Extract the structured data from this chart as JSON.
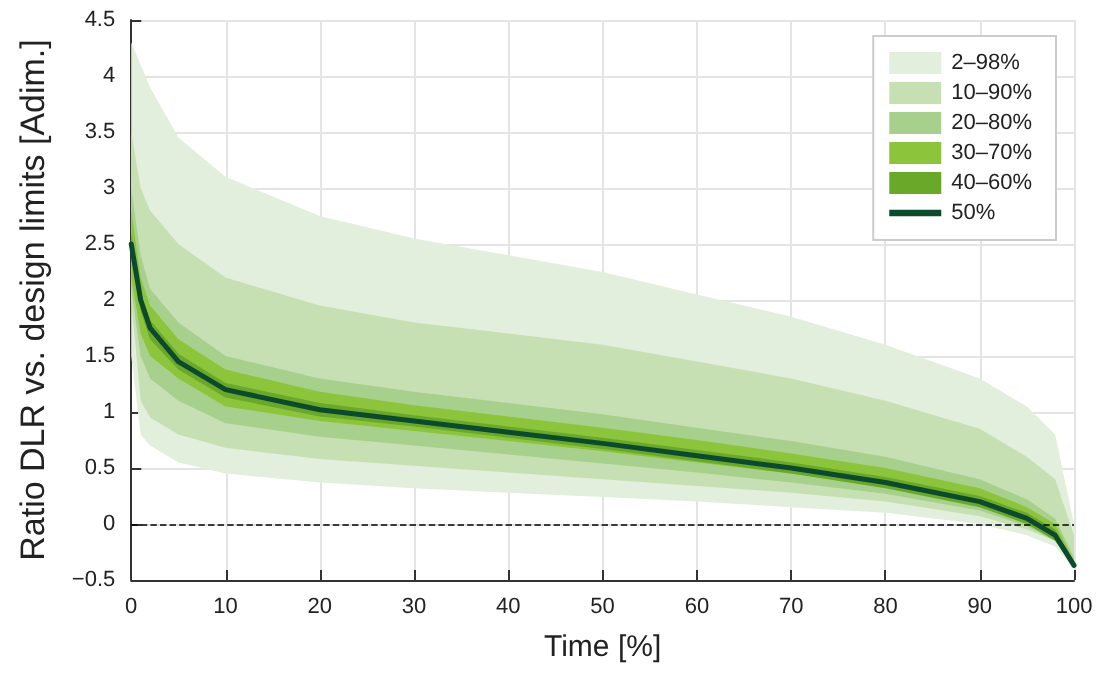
{
  "chart_data": {
    "type": "area",
    "xlabel": "Time [%]",
    "ylabel": "Ratio DLR vs. design limits [Adim.]",
    "x": [
      0,
      1,
      2,
      5,
      10,
      20,
      30,
      40,
      50,
      60,
      70,
      80,
      90,
      95,
      98,
      100
    ],
    "xlim": [
      0,
      100
    ],
    "xticks": [
      0,
      10,
      20,
      30,
      40,
      50,
      60,
      70,
      80,
      90,
      100
    ],
    "ylim": [
      -0.5,
      4.5
    ],
    "yticks": [
      {
        "value": -0.5,
        "label": "−0.5"
      },
      0,
      0.5,
      1,
      1.5,
      2,
      2.5,
      3,
      3.5,
      4,
      4.5
    ],
    "grid": true,
    "legend": "top right",
    "marker": "none",
    "line_style": "solid",
    "ref_lines": [
      {
        "axis": "y",
        "value": 0,
        "color": "#000000",
        "line_style": "dashed"
      }
    ],
    "series": [
      {
        "name": "2–98%",
        "color": "#e2efdd",
        "values": [
          null,
          null,
          null,
          null,
          null,
          null,
          null,
          null,
          null,
          null,
          null,
          null,
          null,
          null,
          null,
          null
        ],
        "lower": [
          1.5,
          0.8,
          0.7,
          0.55,
          0.45,
          0.37,
          0.32,
          0.28,
          0.24,
          0.2,
          0.15,
          0.1,
          0.0,
          -0.1,
          -0.2,
          -0.4
        ],
        "upper": [
          4.3,
          4.1,
          3.9,
          3.45,
          3.1,
          2.75,
          2.55,
          2.4,
          2.25,
          2.05,
          1.85,
          1.6,
          1.3,
          1.05,
          0.8,
          0.0
        ]
      },
      {
        "name": "10–90%",
        "color": "#c6e0b4",
        "values": [
          null,
          null,
          null,
          null,
          null,
          null,
          null,
          null,
          null,
          null,
          null,
          null,
          null,
          null,
          null,
          null
        ],
        "lower": [
          2.0,
          1.1,
          0.95,
          0.8,
          0.68,
          0.58,
          0.52,
          0.46,
          0.4,
          0.34,
          0.28,
          0.2,
          0.07,
          -0.05,
          -0.15,
          -0.38
        ],
        "upper": [
          3.5,
          3.0,
          2.8,
          2.5,
          2.2,
          1.95,
          1.8,
          1.7,
          1.6,
          1.45,
          1.3,
          1.1,
          0.85,
          0.6,
          0.4,
          -0.1
        ]
      },
      {
        "name": "20–80%",
        "color": "#a8d08d",
        "values": [
          null,
          null,
          null,
          null,
          null,
          null,
          null,
          null,
          null,
          null,
          null,
          null,
          null,
          null,
          null,
          null
        ],
        "lower": [
          2.1,
          1.5,
          1.3,
          1.1,
          0.9,
          0.78,
          0.7,
          0.62,
          0.54,
          0.46,
          0.37,
          0.27,
          0.12,
          -0.02,
          -0.15,
          -0.38
        ],
        "upper": [
          3.0,
          2.4,
          2.1,
          1.8,
          1.5,
          1.3,
          1.18,
          1.08,
          0.98,
          0.86,
          0.74,
          0.6,
          0.4,
          0.22,
          0.05,
          -0.3
        ]
      },
      {
        "name": "30–70%",
        "color": "#8cc43c",
        "values": [
          null,
          null,
          null,
          null,
          null,
          null,
          null,
          null,
          null,
          null,
          null,
          null,
          null,
          null,
          null,
          null
        ],
        "lower": [
          2.2,
          1.7,
          1.5,
          1.3,
          1.05,
          0.92,
          0.83,
          0.74,
          0.65,
          0.55,
          0.45,
          0.33,
          0.16,
          0.0,
          -0.14,
          -0.38
        ],
        "upper": [
          2.8,
          2.2,
          1.95,
          1.65,
          1.38,
          1.18,
          1.06,
          0.96,
          0.86,
          0.75,
          0.63,
          0.5,
          0.32,
          0.15,
          0.0,
          -0.33
        ]
      },
      {
        "name": "40–60%",
        "color": "#6aa82a",
        "values": [
          null,
          null,
          null,
          null,
          null,
          null,
          null,
          null,
          null,
          null,
          null,
          null,
          null,
          null,
          null,
          null
        ],
        "lower": [
          2.4,
          1.9,
          1.65,
          1.38,
          1.13,
          0.96,
          0.87,
          0.77,
          0.67,
          0.56,
          0.45,
          0.32,
          0.15,
          0.0,
          -0.15,
          -0.39
        ],
        "upper": [
          2.6,
          2.08,
          1.82,
          1.52,
          1.26,
          1.08,
          0.97,
          0.87,
          0.77,
          0.66,
          0.55,
          0.42,
          0.25,
          0.1,
          -0.05,
          -0.35
        ]
      },
      {
        "name": "50%",
        "type": "line",
        "color": "#0b4a2c",
        "values": [
          2.5,
          2.0,
          1.75,
          1.45,
          1.2,
          1.02,
          0.92,
          0.82,
          0.72,
          0.61,
          0.5,
          0.37,
          0.2,
          0.05,
          -0.1,
          -0.37
        ]
      }
    ]
  }
}
